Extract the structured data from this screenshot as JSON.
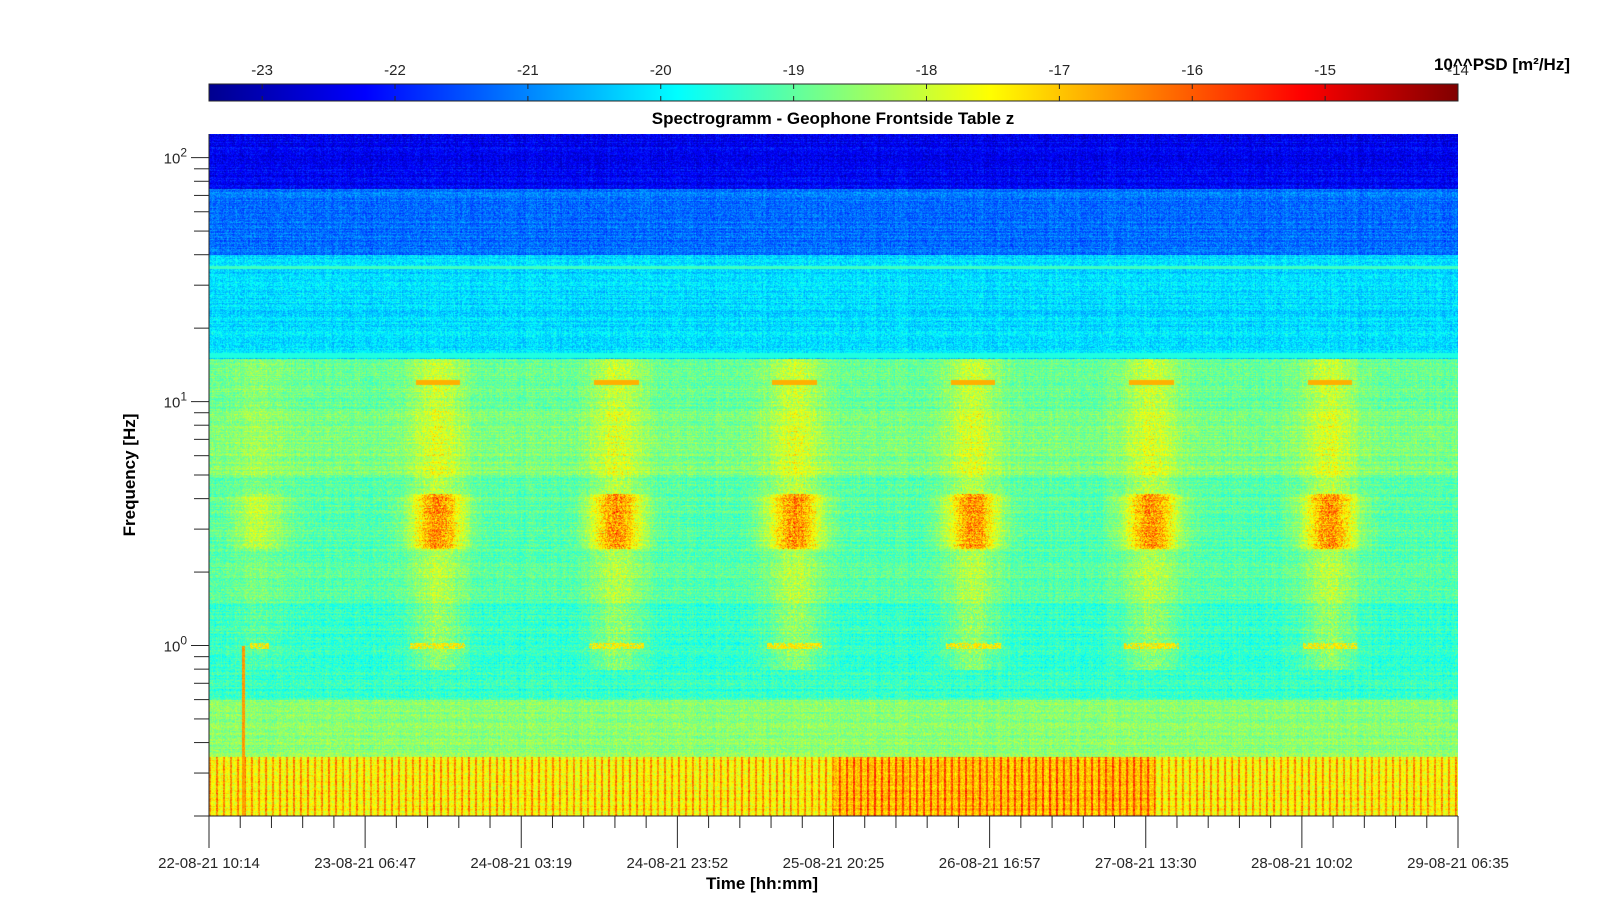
{
  "chart_data": {
    "type": "heatmap",
    "title": "Spectrogramm - Geophone Frontside Table z",
    "xlabel": "Time [hh:mm]",
    "ylabel": "Frequency [Hz]",
    "x_tick_labels": [
      "22-08-21 10:14",
      "23-08-21 06:47",
      "24-08-21 03:19",
      "24-08-21 23:52",
      "25-08-21 20:25",
      "26-08-21 16:57",
      "27-08-21 13:30",
      "28-08-21 10:02",
      "29-08-21 06:35"
    ],
    "y_scale": "log",
    "y_range_hz": [
      0.2,
      125
    ],
    "y_tick_values": [
      1,
      10,
      100
    ],
    "y_tick_labels": [
      {
        "base": "10",
        "exp": "0"
      },
      {
        "base": "10",
        "exp": "1"
      },
      {
        "base": "10",
        "exp": "2"
      }
    ],
    "colorbar": {
      "label": "10^^PSD [m²/Hz]",
      "range": [
        -23.4,
        -14
      ],
      "ticks": [
        -23,
        -22,
        -21,
        -20,
        -19,
        -18,
        -17,
        -16,
        -15,
        -14
      ],
      "colormap": "jet",
      "placement": "top"
    },
    "daily_features": {
      "active_band_hz": [
        2.5,
        4.2
      ],
      "active_band_peak_psd_exp": -16.3,
      "line_1hz_psd_exp": -17.3,
      "line_12hz_psd_exp": -16.8,
      "low_freq_band_hz": [
        0.2,
        0.35
      ],
      "low_freq_peak_psd_exp": -16.8
    },
    "grid": false
  },
  "colors": {
    "axis": "#262626",
    "background": "#ffffff"
  }
}
